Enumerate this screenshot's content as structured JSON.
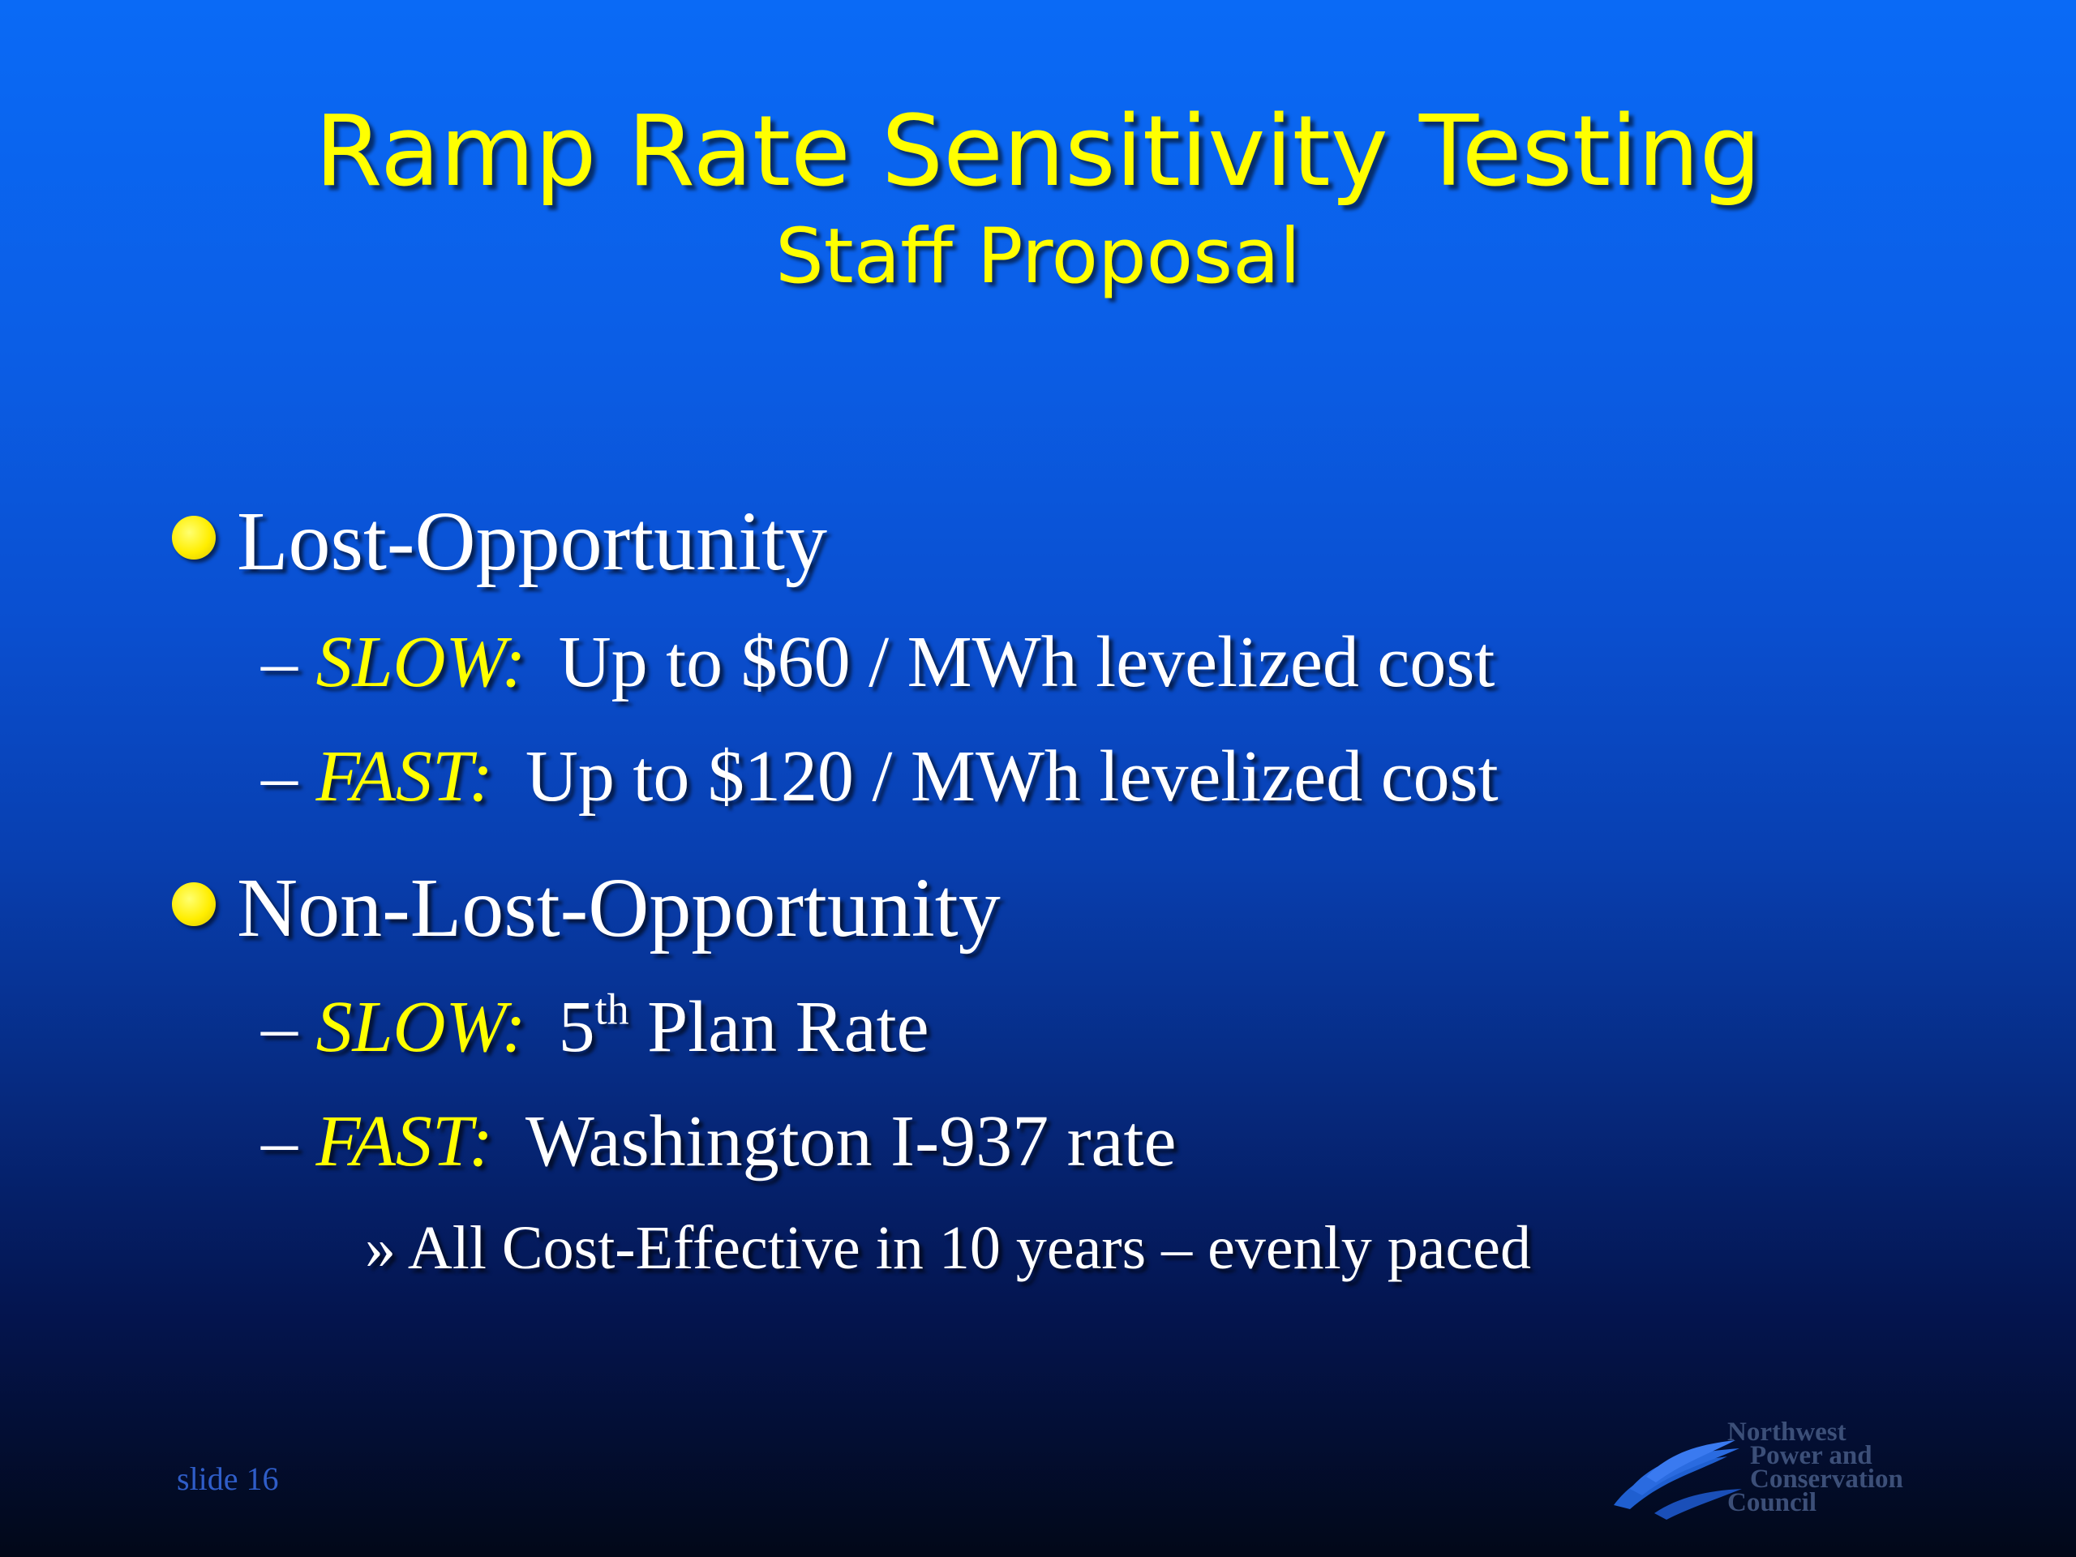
{
  "slide": {
    "title": "Ramp Rate Sensitivity Testing",
    "subtitle": "Staff Proposal"
  },
  "bullets": [
    {
      "label": "Lost-Opportunity",
      "items": [
        {
          "keyword": "SLOW:",
          "text": "Up to $60 / MWh levelized cost"
        },
        {
          "keyword": "FAST:",
          "text": "Up to $120 / MWh levelized cost"
        }
      ]
    },
    {
      "label": "Non-Lost-Opportunity",
      "items": [
        {
          "keyword": "SLOW:",
          "text_num": "5",
          "text_sup": "th",
          "text": "Plan Rate"
        },
        {
          "keyword": "FAST:",
          "text": "Washington I-937 rate"
        }
      ],
      "subitem": "All Cost-Effective in 10 years – evenly paced"
    }
  ],
  "dash": "–",
  "raquo": "»",
  "footer": {
    "slide_label": "slide 16"
  },
  "logo": {
    "line1": "Northwest",
    "line2": "Power and",
    "line3": "Conservation",
    "line4": "Council"
  },
  "colors": {
    "title": "#ffff00",
    "keyword": "#ffff00",
    "body_text": "#ffffff",
    "bullet": "#ffee00"
  }
}
